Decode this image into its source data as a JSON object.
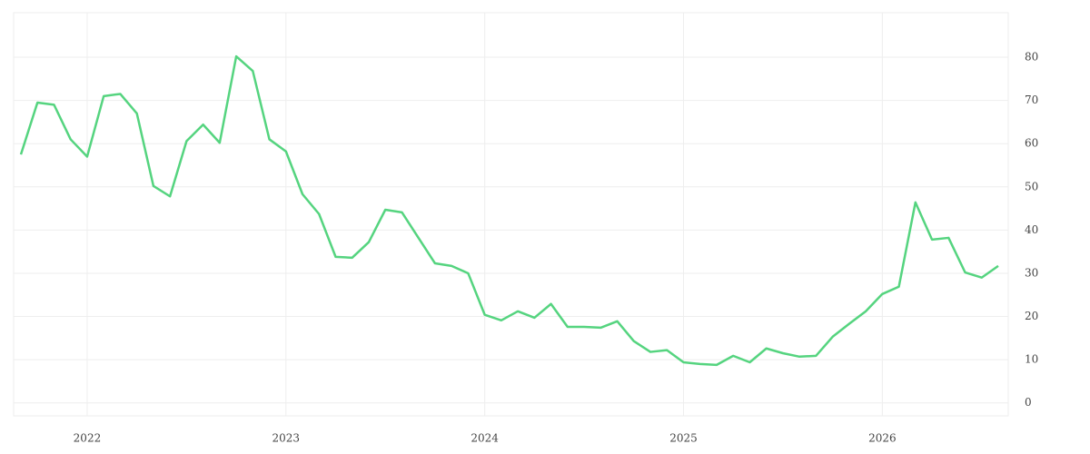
{
  "chart_data": {
    "type": "line",
    "categories": [
      null,
      null,
      null,
      null,
      "2022",
      null,
      null,
      null,
      null,
      null,
      null,
      null,
      null,
      null,
      null,
      null,
      "2023",
      null,
      null,
      null,
      null,
      null,
      null,
      null,
      null,
      null,
      null,
      null,
      "2024",
      null,
      null,
      null,
      null,
      null,
      null,
      null,
      null,
      null,
      null,
      null,
      "2025",
      null,
      null,
      null,
      null,
      null,
      null,
      null,
      null,
      null,
      null,
      null,
      "2026",
      null,
      null,
      null,
      null,
      null,
      null,
      null
    ],
    "series": [
      {
        "color": "#55d47f",
        "values": [
          57.5,
          69.5,
          69,
          61,
          57,
          71,
          71.5,
          67,
          50.2,
          47.8,
          60.6,
          64.4,
          60.2,
          80.2,
          76.8,
          61,
          58.2,
          48.3,
          43.7,
          33.8,
          33.6,
          37.2,
          44.7,
          44.1,
          38.2,
          32.3,
          31.7,
          30,
          20.4,
          19.1,
          21.2,
          19.7,
          22.9,
          17.6,
          17.6,
          17.4,
          18.9,
          14.3,
          11.8,
          12.2,
          9.4,
          9,
          8.8,
          10.9,
          9.4,
          12.6,
          11.5,
          10.7,
          10.9,
          15.3,
          18.3,
          21.2,
          25.2,
          26.9,
          46.4,
          37.8,
          38.2,
          30.2,
          29,
          31.7
        ]
      }
    ],
    "ylim": [
      -3,
      90.3
    ],
    "yticks": [
      0,
      10,
      20,
      30,
      40,
      50,
      60,
      70,
      80
    ],
    "grid": true
  }
}
